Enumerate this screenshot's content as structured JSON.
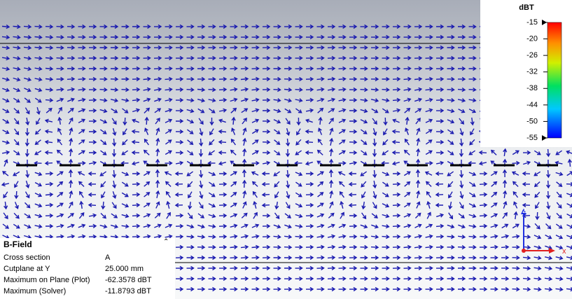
{
  "colorbar": {
    "title": "dBT",
    "ticks": [
      -15,
      -20,
      -26,
      -32,
      -38,
      -44,
      -50,
      -55
    ]
  },
  "info_panel": {
    "title": "B-Field",
    "rows": [
      [
        "Cross section",
        "A"
      ],
      [
        "Cutplane at Y",
        "25.000 mm"
      ],
      [
        "Maximum on Plane (Plot)",
        "-62.3578 dBT"
      ],
      [
        "Maximum (Solver)",
        "-11.8793 dBT"
      ]
    ]
  },
  "axes": {
    "vertical": "z",
    "horizontal": "x"
  }
}
